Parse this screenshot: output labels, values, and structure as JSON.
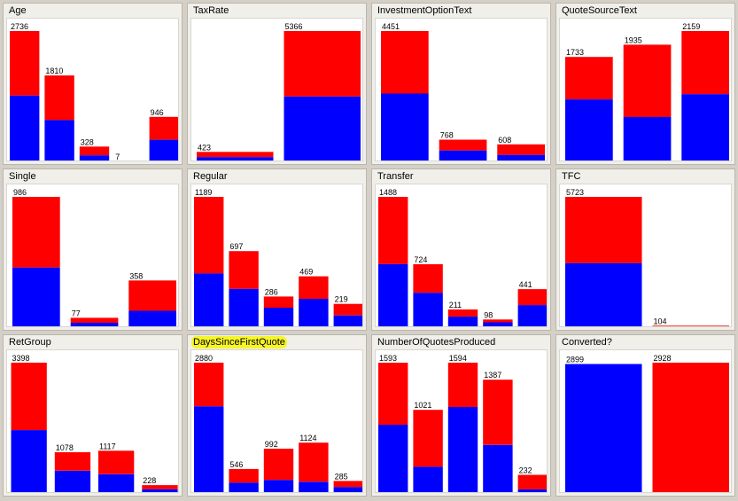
{
  "chart_data": [
    {
      "type": "bar",
      "title": "Age",
      "stacked": true,
      "colors": {
        "lower": "#0000ff",
        "upper": "#ff0000"
      },
      "ylim": [
        0,
        2736
      ],
      "bars": [
        {
          "total": 2736,
          "lower": 1390
        },
        {
          "total": 1810,
          "lower": 880
        },
        {
          "total": 328,
          "lower": 145
        },
        {
          "total": 7,
          "lower": 3
        },
        {
          "total": 946,
          "lower": 470
        }
      ]
    },
    {
      "type": "bar",
      "title": "TaxRate",
      "stacked": true,
      "colors": {
        "lower": "#0000ff",
        "upper": "#ff0000"
      },
      "ylim": [
        0,
        5366
      ],
      "bars": [
        {
          "total": 423,
          "lower": 210
        },
        {
          "total": 5366,
          "lower": 2690
        }
      ]
    },
    {
      "type": "bar",
      "title": "InvestmentOptionText",
      "stacked": true,
      "colors": {
        "lower": "#0000ff",
        "upper": "#ff0000"
      },
      "ylim": [
        0,
        4451
      ],
      "bars": [
        {
          "total": 4451,
          "lower": 2330
        },
        {
          "total": 768,
          "lower": 400
        },
        {
          "total": 608,
          "lower": 250
        }
      ]
    },
    {
      "type": "bar",
      "title": "QuoteSourceText",
      "stacked": true,
      "colors": {
        "lower": "#0000ff",
        "upper": "#ff0000"
      },
      "ylim": [
        0,
        2159
      ],
      "bars": [
        {
          "total": 1733,
          "lower": 1035
        },
        {
          "total": 1935,
          "lower": 745
        },
        {
          "total": 2159,
          "lower": 1120
        }
      ]
    },
    {
      "type": "bar",
      "title": "Single",
      "stacked": true,
      "colors": {
        "lower": "#0000ff",
        "upper": "#ff0000"
      },
      "ylim": [
        0,
        986
      ],
      "bars": [
        {
          "total": 986,
          "lower": 455
        },
        {
          "total": 77,
          "lower": 40
        },
        {
          "total": 358,
          "lower": 130
        }
      ]
    },
    {
      "type": "bar",
      "title": "Regular",
      "stacked": true,
      "colors": {
        "lower": "#0000ff",
        "upper": "#ff0000"
      },
      "ylim": [
        0,
        1189
      ],
      "bars": [
        {
          "total": 1189,
          "lower": 495
        },
        {
          "total": 697,
          "lower": 355
        },
        {
          "total": 286,
          "lower": 185
        },
        {
          "total": 469,
          "lower": 265
        },
        {
          "total": 219,
          "lower": 115
        }
      ]
    },
    {
      "type": "bar",
      "title": "Transfer",
      "stacked": true,
      "colors": {
        "lower": "#0000ff",
        "upper": "#ff0000"
      },
      "ylim": [
        0,
        1488
      ],
      "bars": [
        {
          "total": 1488,
          "lower": 725
        },
        {
          "total": 724,
          "lower": 400
        },
        {
          "total": 211,
          "lower": 130
        },
        {
          "total": 98,
          "lower": 65
        },
        {
          "total": 441,
          "lower": 260
        }
      ]
    },
    {
      "type": "bar",
      "title": "TFC",
      "stacked": true,
      "colors": {
        "lower": "#0000ff",
        "upper": "#ff0000"
      },
      "ylim": [
        0,
        5723
      ],
      "bars": [
        {
          "total": 5723,
          "lower": 2830
        },
        {
          "total": 104,
          "lower": 52
        }
      ]
    },
    {
      "type": "bar",
      "title": "RetGroup",
      "stacked": true,
      "colors": {
        "lower": "#0000ff",
        "upper": "#ff0000"
      },
      "ylim": [
        0,
        3398
      ],
      "bars": [
        {
          "total": 3398,
          "lower": 1650
        },
        {
          "total": 1078,
          "lower": 600
        },
        {
          "total": 1117,
          "lower": 510
        },
        {
          "total": 228,
          "lower": 120
        }
      ]
    },
    {
      "type": "bar",
      "title": "DaysSinceFirstQuote",
      "highlighted": true,
      "stacked": true,
      "colors": {
        "lower": "#0000ff",
        "upper": "#ff0000"
      },
      "ylim": [
        0,
        2880
      ],
      "bars": [
        {
          "total": 2880,
          "lower": 1920
        },
        {
          "total": 546,
          "lower": 245
        },
        {
          "total": 992,
          "lower": 305
        },
        {
          "total": 1124,
          "lower": 265
        },
        {
          "total": 285,
          "lower": 150
        }
      ]
    },
    {
      "type": "bar",
      "title": "NumberOfQuotesProduced",
      "stacked": true,
      "colors": {
        "lower": "#0000ff",
        "upper": "#ff0000"
      },
      "ylim": [
        0,
        1594
      ],
      "bars": [
        {
          "total": 1593,
          "lower": 840
        },
        {
          "total": 1021,
          "lower": 330
        },
        {
          "total": 1594,
          "lower": 1055
        },
        {
          "total": 1387,
          "lower": 595
        },
        {
          "total": 232,
          "lower": 55
        }
      ]
    },
    {
      "type": "bar",
      "title": "Converted?",
      "stacked": true,
      "colors": {
        "lower": "#0000ff",
        "upper": "#ff0000"
      },
      "ylim": [
        0,
        2928
      ],
      "bars": [
        {
          "total": 2899,
          "lower": 2899
        },
        {
          "total": 2928,
          "lower": 0
        }
      ]
    }
  ]
}
